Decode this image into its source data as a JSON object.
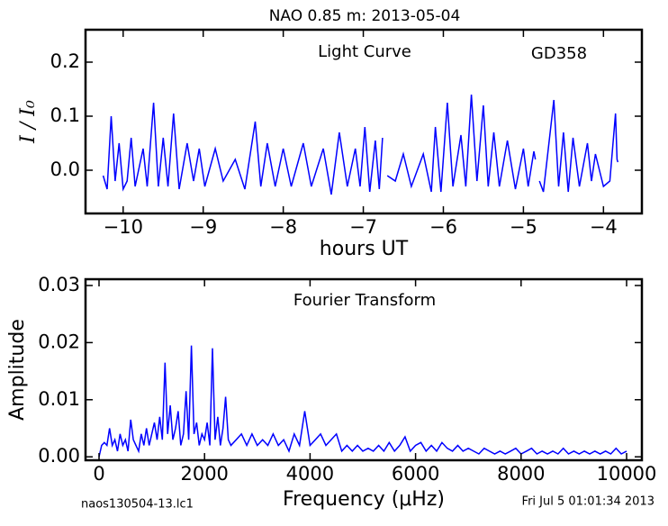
{
  "header": {
    "title": "NAO 0.85 m:  2013-05-04"
  },
  "footer": {
    "left": "naos130504-13.lc1",
    "right": "Fri Jul  5 01:01:34 2013"
  },
  "chart_data": [
    {
      "type": "line",
      "xlabel": "hours UT",
      "ylabel": "I / I₀",
      "color": "#0000ff",
      "annotations": [
        "Light Curve",
        "GD358"
      ],
      "xlim": [
        -10.47,
        -3.52
      ],
      "ylim": [
        -0.08,
        0.26
      ],
      "xticks": [
        {
          "value": -10,
          "label": "−10"
        },
        {
          "value": -9,
          "label": "−9"
        },
        {
          "value": -8,
          "label": "−8"
        },
        {
          "value": -7,
          "label": "−7"
        },
        {
          "value": -6,
          "label": "−6"
        },
        {
          "value": -5,
          "label": "−5"
        },
        {
          "value": -4,
          "label": "−4"
        }
      ],
      "yticks": [
        {
          "value": 0,
          "label": "0.0"
        },
        0.1,
        0.2
      ],
      "x": [
        -10.25,
        -10.2,
        -10.15,
        -10.1,
        -10.05,
        -10.0,
        -9.95,
        -9.9,
        -9.85,
        -9.75,
        -9.7,
        -9.62,
        -9.56,
        -9.5,
        -9.44,
        -9.37,
        -9.3,
        -9.2,
        -9.12,
        -9.05,
        -8.98,
        -8.85,
        -8.75,
        -8.6,
        -8.48,
        -8.35,
        -8.28,
        -8.2,
        -8.1,
        -8.0,
        -7.9,
        -7.75,
        -7.65,
        -7.5,
        -7.4,
        -7.3,
        -7.2,
        -7.1,
        -7.04,
        -6.98,
        -6.92,
        -6.85,
        -6.8,
        -6.76,
        -6.73,
        -6.7,
        -6.6,
        -6.5,
        -6.4,
        -6.25,
        -6.15,
        -6.1,
        -6.03,
        -5.95,
        -5.88,
        -5.78,
        -5.72,
        -5.65,
        -5.58,
        -5.5,
        -5.44,
        -5.37,
        -5.3,
        -5.2,
        -5.1,
        -5.0,
        -4.94,
        -4.87,
        -4.85,
        -4.83,
        -4.8,
        -4.75,
        -4.62,
        -4.56,
        -4.5,
        -4.44,
        -4.38,
        -4.3,
        -4.2,
        -4.15,
        -4.1,
        -4.0,
        -3.92,
        -3.85,
        -3.83,
        -3.82
      ],
      "values": [
        -0.01,
        -0.035,
        0.1,
        -0.02,
        0.05,
        -0.035,
        -0.02,
        0.06,
        -0.03,
        0.04,
        -0.03,
        0.125,
        -0.03,
        0.06,
        -0.03,
        0.105,
        -0.035,
        0.05,
        -0.02,
        0.04,
        -0.03,
        0.04,
        -0.02,
        0.02,
        -0.035,
        0.09,
        -0.03,
        0.05,
        -0.03,
        0.04,
        -0.03,
        0.05,
        -0.03,
        0.04,
        -0.045,
        0.07,
        -0.03,
        0.04,
        -0.03,
        0.08,
        -0.04,
        0.055,
        -0.035,
        0.06,
        null,
        -0.01,
        -0.02,
        0.03,
        -0.03,
        0.03,
        -0.04,
        0.08,
        -0.04,
        0.125,
        -0.03,
        0.065,
        -0.03,
        0.14,
        -0.02,
        0.12,
        -0.03,
        0.07,
        -0.03,
        0.055,
        -0.035,
        0.04,
        -0.03,
        0.035,
        0.02,
        null,
        -0.02,
        -0.04,
        0.13,
        -0.03,
        0.07,
        -0.04,
        0.06,
        -0.03,
        0.05,
        -0.02,
        0.03,
        -0.03,
        -0.02,
        0.105,
        0.02,
        0.015
      ]
    },
    {
      "type": "line",
      "xlabel": "Frequency (μHz)",
      "ylabel": "Amplitude",
      "color": "#0000ff",
      "annotations": [
        "Fourier Transform"
      ],
      "xlim": [
        -256,
        10290
      ],
      "ylim": [
        -0.0006,
        0.0311
      ],
      "xticks": [
        0,
        2000,
        4000,
        6000,
        8000,
        10000
      ],
      "yticks": [
        {
          "value": 0,
          "label": "0.00"
        },
        0.01,
        0.02,
        0.03
      ],
      "x": [
        0,
        50,
        100,
        150,
        200,
        250,
        300,
        350,
        400,
        450,
        500,
        550,
        600,
        650,
        700,
        750,
        800,
        850,
        900,
        950,
        1000,
        1050,
        1100,
        1150,
        1200,
        1250,
        1300,
        1350,
        1400,
        1450,
        1500,
        1550,
        1600,
        1650,
        1700,
        1750,
        1800,
        1850,
        1900,
        1950,
        2000,
        2050,
        2100,
        2150,
        2200,
        2250,
        2300,
        2350,
        2400,
        2450,
        2500,
        2600,
        2700,
        2800,
        2900,
        3000,
        3100,
        3200,
        3300,
        3400,
        3500,
        3600,
        3700,
        3800,
        3900,
        4000,
        4100,
        4200,
        4300,
        4400,
        4500,
        4600,
        4700,
        4800,
        4900,
        5000,
        5100,
        5200,
        5300,
        5400,
        5500,
        5600,
        5700,
        5800,
        5900,
        6000,
        6100,
        6200,
        6300,
        6400,
        6500,
        6600,
        6700,
        6800,
        6900,
        7000,
        7100,
        7200,
        7300,
        7400,
        7500,
        7600,
        7700,
        7800,
        7900,
        8000,
        8100,
        8200,
        8300,
        8400,
        8500,
        8600,
        8700,
        8800,
        8900,
        9000,
        9100,
        9200,
        9300,
        9400,
        9500,
        9600,
        9700,
        9800,
        9900,
        10000
      ],
      "values": [
        0.0,
        0.002,
        0.0025,
        0.002,
        0.005,
        0.002,
        0.003,
        0.001,
        0.004,
        0.002,
        0.003,
        0.001,
        0.0065,
        0.003,
        0.002,
        0.001,
        0.004,
        0.002,
        0.005,
        0.002,
        0.004,
        0.006,
        0.003,
        0.007,
        0.003,
        0.0165,
        0.004,
        0.009,
        0.003,
        0.005,
        0.008,
        0.002,
        0.004,
        0.0115,
        0.003,
        0.0195,
        0.004,
        0.006,
        0.002,
        0.004,
        0.003,
        0.006,
        0.002,
        0.019,
        0.003,
        0.007,
        0.002,
        0.005,
        0.0105,
        0.003,
        0.002,
        0.003,
        0.004,
        0.002,
        0.004,
        0.002,
        0.003,
        0.002,
        0.004,
        0.002,
        0.003,
        0.001,
        0.004,
        0.002,
        0.008,
        0.002,
        0.003,
        0.004,
        0.002,
        0.003,
        0.004,
        0.001,
        0.002,
        0.001,
        0.002,
        0.001,
        0.0015,
        0.001,
        0.002,
        0.001,
        0.0025,
        0.001,
        0.002,
        0.0035,
        0.001,
        0.002,
        0.0025,
        0.001,
        0.002,
        0.001,
        0.0025,
        0.0015,
        0.001,
        0.002,
        0.001,
        0.0015,
        0.001,
        0.0005,
        0.0015,
        0.001,
        0.0005,
        0.001,
        0.0005,
        0.001,
        0.0015,
        0.0005,
        0.001,
        0.0015,
        0.0005,
        0.001,
        0.0005,
        0.001,
        0.0005,
        0.0015,
        0.0005,
        0.001,
        0.0005,
        0.001,
        0.0005,
        0.001,
        0.0005,
        0.001,
        0.0005,
        0.0015,
        0.0005,
        0.001
      ]
    }
  ]
}
